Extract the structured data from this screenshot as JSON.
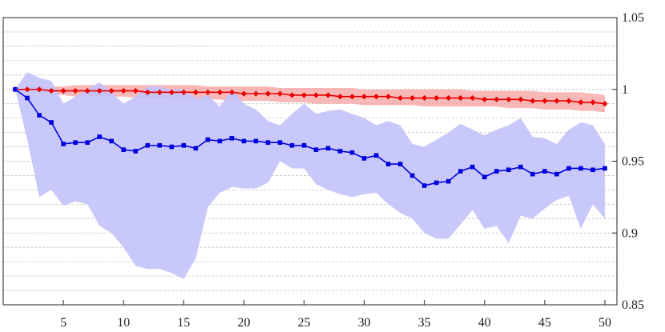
{
  "chart_data": {
    "type": "line",
    "title": "",
    "xlabel": "",
    "ylabel": "",
    "xlim": [
      0,
      51
    ],
    "ylim": [
      0.85,
      1.05
    ],
    "grid": "horizontal dashed",
    "legend": "none",
    "x_ticks": [
      5,
      10,
      15,
      20,
      25,
      30,
      35,
      40,
      45,
      50
    ],
    "x_tick_labels": [
      "5",
      "10",
      "15",
      "20",
      "25",
      "30",
      "35",
      "40",
      "45",
      "50"
    ],
    "y_ticks": [
      0.85,
      0.9,
      0.95,
      1,
      1.05
    ],
    "y_tick_labels": [
      "0.85",
      "0.9",
      "0.95",
      "1",
      "1.05"
    ],
    "y_minor_grid_step": 0.01,
    "x": [
      1,
      2,
      3,
      4,
      5,
      6,
      7,
      8,
      9,
      10,
      11,
      12,
      13,
      14,
      15,
      16,
      17,
      18,
      19,
      20,
      21,
      22,
      23,
      24,
      25,
      26,
      27,
      28,
      29,
      30,
      31,
      32,
      33,
      34,
      35,
      36,
      37,
      38,
      39,
      40,
      41,
      42,
      43,
      44,
      45,
      46,
      47,
      48,
      49,
      50
    ],
    "series": [
      {
        "name": "red series",
        "color": "#e60000",
        "band_color": "#f5a0a0",
        "marker": "diamond",
        "values": [
          1.0,
          1.0,
          1.0,
          0.999,
          0.999,
          0.999,
          0.999,
          0.999,
          0.999,
          0.999,
          0.999,
          0.998,
          0.998,
          0.998,
          0.998,
          0.998,
          0.998,
          0.998,
          0.998,
          0.997,
          0.997,
          0.997,
          0.997,
          0.996,
          0.996,
          0.996,
          0.996,
          0.995,
          0.995,
          0.995,
          0.995,
          0.995,
          0.994,
          0.994,
          0.994,
          0.994,
          0.994,
          0.994,
          0.994,
          0.993,
          0.993,
          0.993,
          0.993,
          0.992,
          0.992,
          0.992,
          0.992,
          0.991,
          0.991,
          0.99
        ],
        "upper": [
          1.0,
          1.001,
          1.002,
          1.002,
          1.002,
          1.003,
          1.003,
          1.003,
          1.003,
          1.003,
          1.003,
          1.003,
          1.003,
          1.003,
          1.003,
          1.003,
          1.002,
          1.002,
          1.002,
          1.002,
          1.002,
          1.002,
          1.001,
          1.001,
          1.001,
          1.001,
          1.001,
          1.001,
          1.001,
          1.0,
          1.0,
          1.0,
          1.0,
          1.0,
          1.0,
          1.0,
          1.0,
          1.0,
          0.999,
          0.999,
          0.999,
          0.999,
          0.999,
          0.999,
          0.998,
          0.998,
          0.998,
          0.998,
          0.997,
          0.996
        ],
        "lower": [
          1.0,
          0.999,
          0.998,
          0.997,
          0.996,
          0.995,
          0.995,
          0.995,
          0.995,
          0.995,
          0.994,
          0.994,
          0.994,
          0.993,
          0.993,
          0.993,
          0.993,
          0.993,
          0.992,
          0.992,
          0.992,
          0.992,
          0.991,
          0.991,
          0.991,
          0.99,
          0.99,
          0.99,
          0.99,
          0.989,
          0.989,
          0.989,
          0.989,
          0.989,
          0.988,
          0.988,
          0.988,
          0.988,
          0.988,
          0.988,
          0.988,
          0.987,
          0.987,
          0.987,
          0.986,
          0.986,
          0.986,
          0.985,
          0.985,
          0.984
        ]
      },
      {
        "name": "blue series",
        "color": "#0000dd",
        "band_color": "#c2c2fa",
        "marker": "square",
        "values": [
          1.0,
          0.994,
          0.982,
          0.977,
          0.962,
          0.963,
          0.963,
          0.967,
          0.964,
          0.958,
          0.957,
          0.961,
          0.961,
          0.96,
          0.961,
          0.959,
          0.965,
          0.964,
          0.966,
          0.964,
          0.964,
          0.963,
          0.963,
          0.961,
          0.961,
          0.958,
          0.959,
          0.957,
          0.956,
          0.952,
          0.954,
          0.948,
          0.948,
          0.94,
          0.933,
          0.935,
          0.936,
          0.943,
          0.946,
          0.939,
          0.943,
          0.944,
          0.946,
          0.941,
          0.943,
          0.941,
          0.945,
          0.945,
          0.944,
          0.945
        ],
        "upper": [
          1.0,
          1.012,
          1.008,
          1.006,
          0.99,
          0.995,
          1.0,
          1.005,
          0.998,
          0.99,
          0.995,
          1.002,
          1.002,
          1.0,
          1.0,
          0.994,
          0.996,
          0.988,
          1.0,
          0.99,
          0.986,
          0.978,
          0.975,
          0.983,
          0.99,
          0.983,
          0.985,
          0.986,
          0.983,
          0.98,
          0.975,
          0.978,
          0.975,
          0.962,
          0.96,
          0.965,
          0.97,
          0.976,
          0.972,
          0.968,
          0.972,
          0.975,
          0.98,
          0.967,
          0.966,
          0.962,
          0.972,
          0.977,
          0.975,
          0.962
        ],
        "lower": [
          1.0,
          0.965,
          0.925,
          0.93,
          0.919,
          0.922,
          0.92,
          0.905,
          0.9,
          0.89,
          0.877,
          0.875,
          0.875,
          0.872,
          0.868,
          0.882,
          0.918,
          0.928,
          0.932,
          0.931,
          0.931,
          0.935,
          0.95,
          0.945,
          0.945,
          0.934,
          0.93,
          0.927,
          0.925,
          0.927,
          0.928,
          0.92,
          0.914,
          0.91,
          0.9,
          0.896,
          0.896,
          0.906,
          0.916,
          0.903,
          0.905,
          0.893,
          0.912,
          0.91,
          0.917,
          0.923,
          0.926,
          0.903,
          0.92,
          0.91
        ]
      }
    ]
  }
}
